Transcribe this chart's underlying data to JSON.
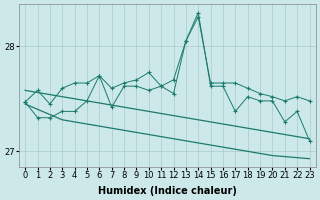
{
  "xlabel": "Humidex (Indice chaleur)",
  "ylabel": "",
  "background_color": "#cce8e8",
  "grid_color": "#aacccc",
  "line_color": "#1a7a6e",
  "x": [
    0,
    1,
    2,
    3,
    4,
    5,
    6,
    7,
    8,
    9,
    10,
    11,
    12,
    13,
    14,
    15,
    16,
    17,
    18,
    19,
    20,
    21,
    22,
    23
  ],
  "y_jagged1": [
    27.47,
    27.58,
    27.45,
    27.6,
    27.65,
    27.65,
    27.72,
    27.6,
    27.65,
    27.68,
    27.75,
    27.62,
    27.68,
    28.05,
    28.28,
    27.65,
    27.65,
    27.65,
    27.6,
    27.55,
    27.52,
    27.48,
    27.52,
    27.48
  ],
  "y_jagged2": [
    27.47,
    27.32,
    27.32,
    27.38,
    27.38,
    27.48,
    27.72,
    27.42,
    27.62,
    27.62,
    27.58,
    27.62,
    27.55,
    28.05,
    28.32,
    27.62,
    27.62,
    27.38,
    27.52,
    27.48,
    27.48,
    27.28,
    27.38,
    27.1
  ],
  "y_trend_upper": [
    27.58,
    27.56,
    27.54,
    27.52,
    27.5,
    27.48,
    27.46,
    27.44,
    27.42,
    27.4,
    27.38,
    27.36,
    27.34,
    27.32,
    27.3,
    27.28,
    27.26,
    27.24,
    27.22,
    27.2,
    27.18,
    27.16,
    27.14,
    27.12
  ],
  "y_trend_lower": [
    27.45,
    27.4,
    27.35,
    27.3,
    27.28,
    27.26,
    27.24,
    27.22,
    27.2,
    27.18,
    27.16,
    27.14,
    27.12,
    27.1,
    27.08,
    27.06,
    27.04,
    27.02,
    27.0,
    26.98,
    26.96,
    26.95,
    26.94,
    26.93
  ],
  "ylim": [
    26.85,
    28.4
  ],
  "yticks": [
    27,
    28
  ],
  "xticks": [
    0,
    1,
    2,
    3,
    4,
    5,
    6,
    7,
    8,
    9,
    10,
    11,
    12,
    13,
    14,
    15,
    16,
    17,
    18,
    19,
    20,
    21,
    22,
    23
  ],
  "axis_fontsize": 7,
  "tick_fontsize": 6
}
